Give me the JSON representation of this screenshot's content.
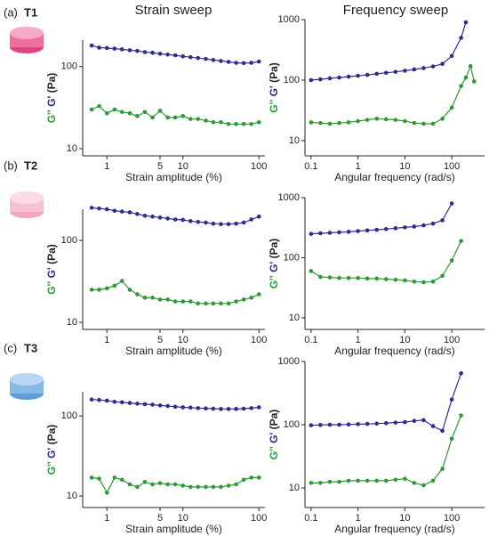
{
  "column_titles": [
    "Strain sweep",
    "Frequency sweep"
  ],
  "chart_data": [
    {
      "type": "line",
      "panel": "(a)",
      "sample": "T1",
      "xlabel": "Strain amplitude (%)",
      "ylabel": "(Pa)",
      "xlog": true,
      "ylog": true,
      "xlim": [
        0.48,
        120
      ],
      "xticks": [
        1,
        5,
        10,
        100
      ],
      "ylim": [
        8.2,
        210
      ],
      "yticks": [
        10,
        100
      ],
      "x": [
        0.63,
        0.79,
        1,
        1.26,
        1.58,
        2,
        2.51,
        3.16,
        3.98,
        5.01,
        6.31,
        7.94,
        10,
        12.6,
        15.8,
        20,
        25.1,
        31.6,
        39.8,
        50.1,
        63.1,
        79.4,
        100
      ],
      "series": [
        {
          "name": "G''",
          "color": "#2e9a36",
          "values": [
            30,
            33,
            27,
            30,
            28,
            27,
            25,
            28,
            24,
            29,
            24,
            24,
            25,
            23,
            23,
            22,
            21,
            21,
            20,
            20,
            20,
            20,
            21
          ]
        },
        {
          "name": "G'",
          "color": "#2d2d8f",
          "values": [
            180,
            170,
            168,
            165,
            162,
            158,
            155,
            150,
            147,
            143,
            140,
            137,
            133,
            130,
            127,
            124,
            120,
            117,
            114,
            111,
            110,
            111,
            115
          ]
        }
      ]
    },
    {
      "type": "line",
      "panel": "(a)",
      "sample": "T1",
      "xlabel": "Angular frequency (rad/s)",
      "ylabel": "(Pa)",
      "xlog": true,
      "ylog": true,
      "xlim": [
        0.074,
        500
      ],
      "xticks": [
        0.1,
        1,
        10,
        100
      ],
      "ylim": [
        5.6,
        1000
      ],
      "yticks": [
        10,
        100,
        1000
      ],
      "x": [
        0.1,
        0.158,
        0.251,
        0.398,
        0.631,
        1,
        1.58,
        2.51,
        3.98,
        6.31,
        10,
        15.8,
        25.1,
        39.8,
        63.1,
        100,
        158,
        200,
        251,
        300
      ],
      "series": [
        {
          "name": "G''",
          "color": "#2e9a36",
          "values": [
            20,
            19.5,
            19,
            19.5,
            20,
            21,
            22,
            23,
            22.5,
            22,
            21,
            19.5,
            19,
            19,
            23,
            35,
            80,
            110,
            170,
            95
          ]
        },
        {
          "name": "G'",
          "color": "#2d2d8f",
          "values": [
            100,
            103,
            107,
            110,
            114,
            118,
            122,
            127,
            132,
            137,
            143,
            150,
            158,
            168,
            185,
            250,
            500,
            900,
            null,
            null
          ]
        }
      ]
    },
    {
      "type": "line",
      "panel": "(b)",
      "sample": "T2",
      "xlabel": "Strain amplitude (%)",
      "ylabel": "(Pa)",
      "xlog": true,
      "ylog": true,
      "xlim": [
        0.48,
        120
      ],
      "xticks": [
        1,
        5,
        10,
        100
      ],
      "ylim": [
        8.2,
        240
      ],
      "yticks": [
        10,
        100
      ],
      "x": [
        0.63,
        0.79,
        1,
        1.26,
        1.58,
        2,
        2.51,
        3.16,
        3.98,
        5.01,
        6.31,
        7.94,
        10,
        12.6,
        15.8,
        20,
        25.1,
        31.6,
        39.8,
        50.1,
        63.1,
        79.4,
        100
      ],
      "series": [
        {
          "name": "G''",
          "color": "#2e9a36",
          "values": [
            25,
            25,
            26,
            28,
            32,
            25,
            22,
            20,
            20,
            19,
            19,
            18,
            18,
            18,
            17,
            17,
            17,
            17,
            17,
            18,
            19,
            20,
            22
          ]
        },
        {
          "name": "G'",
          "color": "#2d2d8f",
          "values": [
            250,
            245,
            240,
            230,
            225,
            220,
            210,
            200,
            195,
            190,
            185,
            180,
            178,
            172,
            168,
            165,
            160,
            158,
            158,
            160,
            165,
            180,
            195
          ]
        }
      ]
    },
    {
      "type": "line",
      "panel": "(b)",
      "sample": "T2",
      "xlabel": "Angular frequency (rad/s)",
      "ylabel": "(Pa)",
      "xlog": true,
      "ylog": true,
      "xlim": [
        0.074,
        500
      ],
      "xticks": [
        0.1,
        1,
        10,
        100
      ],
      "ylim": [
        6.4,
        1000
      ],
      "yticks": [
        10,
        100,
        1000
      ],
      "x": [
        0.1,
        0.158,
        0.251,
        0.398,
        0.631,
        1,
        1.58,
        2.51,
        3.98,
        6.31,
        10,
        15.8,
        25.1,
        39.8,
        63.1,
        100,
        158
      ],
      "series": [
        {
          "name": "G''",
          "color": "#2e9a36",
          "values": [
            60,
            48,
            47,
            46,
            46,
            46,
            45,
            45,
            44,
            43,
            42,
            40,
            39,
            40,
            50,
            90,
            190
          ]
        },
        {
          "name": "G'",
          "color": "#2d2d8f",
          "values": [
            250,
            255,
            260,
            265,
            270,
            278,
            285,
            292,
            300,
            310,
            320,
            330,
            345,
            370,
            420,
            800,
            null
          ]
        }
      ]
    },
    {
      "type": "line",
      "panel": "(c)",
      "sample": "T3",
      "xlabel": "Strain amplitude (%)",
      "ylabel": "(Pa)",
      "xlog": true,
      "ylog": true,
      "xlim": [
        0.48,
        120
      ],
      "xticks": [
        1,
        5,
        10,
        100
      ],
      "ylim": [
        7.2,
        200
      ],
      "yticks": [
        10,
        100
      ],
      "x": [
        0.63,
        0.79,
        1,
        1.26,
        1.58,
        2,
        2.51,
        3.16,
        3.98,
        5.01,
        6.31,
        7.94,
        10,
        12.6,
        15.8,
        20,
        25.1,
        31.6,
        39.8,
        50.1,
        63.1,
        79.4,
        100
      ],
      "series": [
        {
          "name": "G''",
          "color": "#2e9a36",
          "values": [
            17,
            16.5,
            11,
            17,
            16,
            14,
            13,
            15,
            14,
            14.5,
            14,
            14,
            13.5,
            13,
            13,
            13,
            13,
            13,
            13.5,
            14,
            16,
            17,
            17
          ]
        },
        {
          "name": "G'",
          "color": "#2d2d8f",
          "values": [
            160,
            158,
            155,
            150,
            148,
            145,
            142,
            140,
            138,
            135,
            133,
            130,
            128,
            127,
            125,
            124,
            123,
            122,
            122,
            122,
            123,
            125,
            128
          ]
        }
      ]
    },
    {
      "type": "line",
      "panel": "(c)",
      "sample": "T3",
      "xlabel": "Angular frequency (rad/s)",
      "ylabel": "(Pa)",
      "xlog": true,
      "ylog": true,
      "xlim": [
        0.074,
        500
      ],
      "xticks": [
        0.1,
        1,
        10,
        100
      ],
      "ylim": [
        4.9,
        1000
      ],
      "yticks": [
        10,
        100,
        1000
      ],
      "x": [
        0.1,
        0.158,
        0.251,
        0.398,
        0.631,
        1,
        1.58,
        2.51,
        3.98,
        6.31,
        10,
        15.8,
        25.1,
        39.8,
        63.1,
        100,
        158
      ],
      "series": [
        {
          "name": "G''",
          "color": "#2e9a36",
          "values": [
            12,
            12,
            12.5,
            12.5,
            13,
            13,
            13,
            13,
            13,
            13.5,
            14,
            12,
            11,
            13,
            20,
            60,
            140
          ]
        },
        {
          "name": "G'",
          "color": "#2d2d8f",
          "values": [
            98,
            99,
            100,
            100,
            101,
            102,
            103,
            104,
            106,
            108,
            110,
            115,
            118,
            95,
            80,
            250,
            650
          ]
        }
      ]
    }
  ]
}
